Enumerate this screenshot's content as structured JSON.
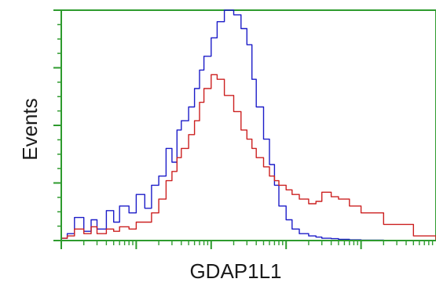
{
  "chart_data": {
    "type": "line",
    "title": "",
    "xlabel": "GDAP1L1",
    "ylabel": "Events",
    "x_scale": "log",
    "xlim": [
      1,
      100000
    ],
    "ylim": [
      0,
      100
    ],
    "grid": false,
    "legend": "none",
    "frame_color": "#2e9b2e",
    "series": [
      {
        "color": "#1c1cc8",
        "x": [
          1.0,
          1.2,
          1.5,
          2.0,
          2.5,
          3.0,
          4.0,
          5.0,
          6.0,
          8.0,
          10,
          13,
          16,
          20,
          25,
          30,
          35,
          40,
          50,
          60,
          70,
          80,
          100,
          120,
          150,
          200,
          250,
          300,
          350,
          400,
          500,
          600,
          700,
          800,
          1000,
          1200,
          1500,
          2000,
          2500,
          3000,
          4000,
          5000,
          7000,
          10000,
          20000,
          50000,
          100000
        ],
        "y": [
          1,
          3,
          10,
          4,
          9,
          5,
          13,
          8,
          15,
          12,
          20,
          14,
          24,
          28,
          40,
          34,
          48,
          52,
          58,
          66,
          74,
          80,
          88,
          95,
          100,
          98,
          92,
          85,
          70,
          58,
          44,
          33,
          24,
          15,
          9,
          5,
          3,
          2,
          1.5,
          1,
          0.8,
          0.5,
          0.3,
          0.2,
          0.1,
          0,
          0
        ]
      },
      {
        "color": "#cc2020",
        "x": [
          1.0,
          1.2,
          1.5,
          2.0,
          2.5,
          3.0,
          4.0,
          5.0,
          6.0,
          8.0,
          10,
          13,
          16,
          20,
          25,
          30,
          35,
          40,
          50,
          60,
          70,
          80,
          100,
          120,
          150,
          200,
          250,
          300,
          350,
          400,
          500,
          600,
          700,
          800,
          1000,
          1200,
          1500,
          2000,
          2500,
          3000,
          4000,
          5000,
          7000,
          10000,
          20000,
          50000,
          100000
        ],
        "y": [
          1,
          2,
          5,
          3,
          6,
          3,
          5,
          4,
          6,
          5,
          8,
          8,
          12,
          18,
          26,
          30,
          36,
          40,
          46,
          52,
          60,
          66,
          72,
          70,
          63,
          56,
          48,
          44,
          40,
          36,
          32,
          28,
          26,
          24,
          22,
          20,
          18,
          16,
          17,
          21,
          19,
          18,
          15,
          12,
          7,
          2,
          0
        ]
      }
    ]
  }
}
